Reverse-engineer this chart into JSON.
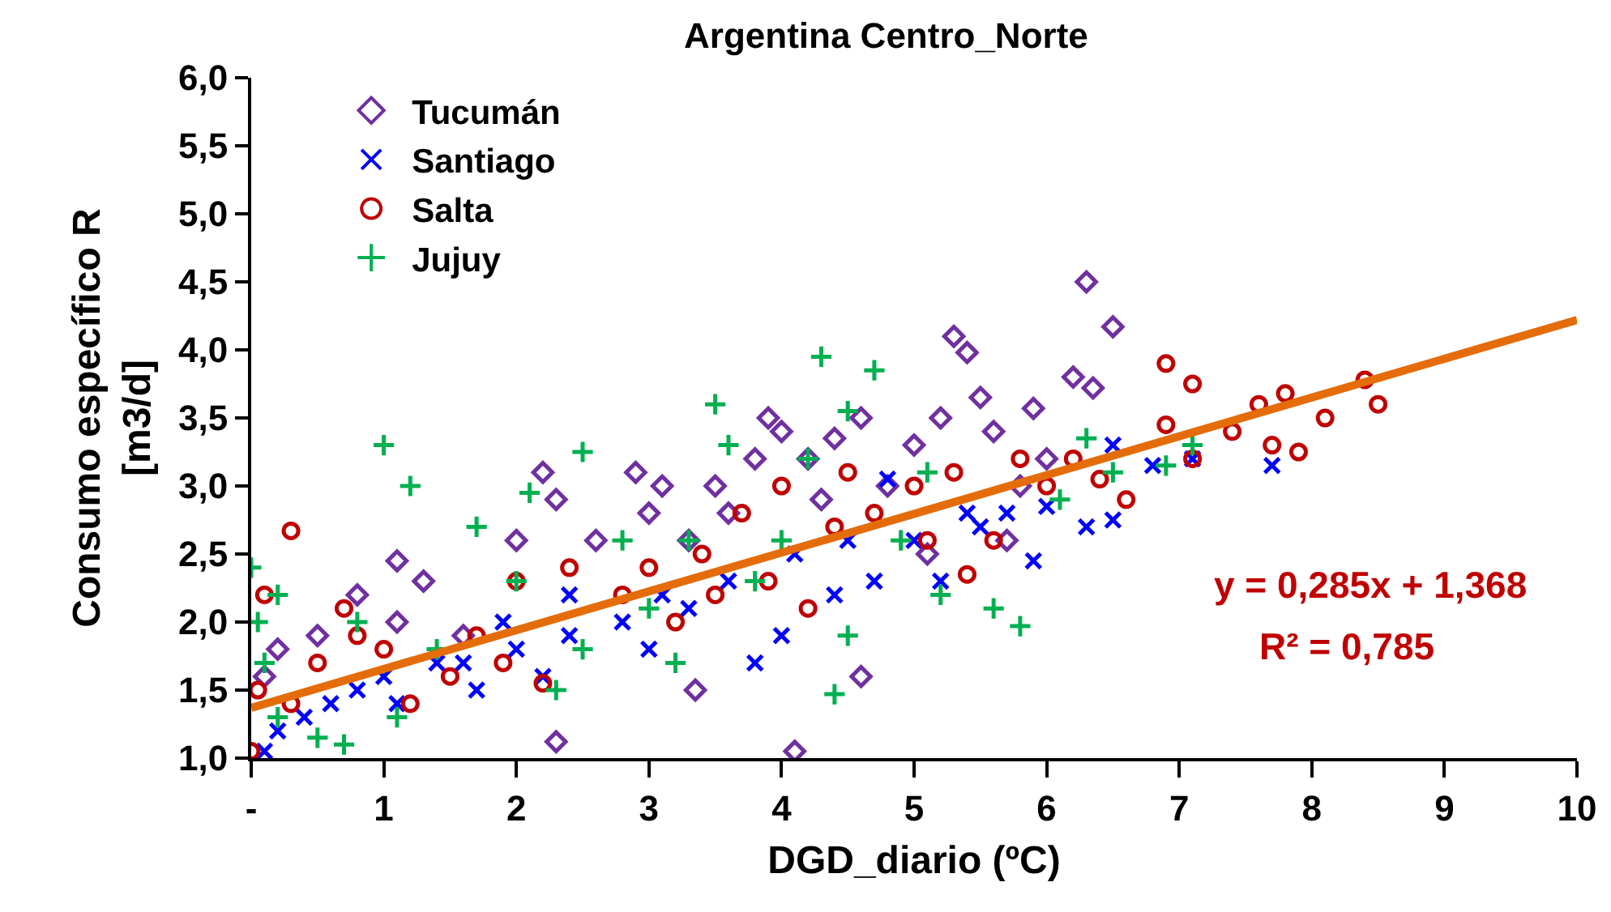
{
  "chart_data": {
    "type": "scatter",
    "title": "Argentina Centro_Norte",
    "xlabel": "DGD_diario (ºC)",
    "ylabel": "Consumo específico R\n[m3/d]",
    "xlim": [
      0,
      10
    ],
    "xticks": [
      {
        "value": 0,
        "label": "-"
      },
      1,
      2,
      3,
      4,
      5,
      6,
      7,
      8,
      9,
      10
    ],
    "ylim": [
      1,
      6
    ],
    "yticks": [
      {
        "value": 1,
        "label": "1,0"
      },
      {
        "value": 1.5,
        "label": "1,5"
      },
      {
        "value": 2,
        "label": "2,0"
      },
      {
        "value": 2.5,
        "label": "2,5"
      },
      {
        "value": 3,
        "label": "3,0"
      },
      {
        "value": 3.5,
        "label": "3,5"
      },
      {
        "value": 4,
        "label": "4,0"
      },
      {
        "value": 4.5,
        "label": "4,5"
      },
      {
        "value": 5,
        "label": "5,0"
      },
      {
        "value": 5.5,
        "label": "5,5"
      },
      {
        "value": 6,
        "label": "6,0"
      }
    ],
    "grid": false,
    "legend": "top left",
    "annotations": [
      "y = 0,285x + 1,368",
      "R² = 0,785"
    ],
    "series": [
      {
        "name": "Tucumán",
        "color": "#7030a0",
        "marker": "diamond",
        "x": [
          4.1,
          2.3,
          3.35,
          0.1,
          0.2,
          0.5,
          0.8,
          1.1,
          1.1,
          1.3,
          1.6,
          2.0,
          2.2,
          2.3,
          2.6,
          2.9,
          3.1,
          3.0,
          3.3,
          3.5,
          3.6,
          3.9,
          4.0,
          3.8,
          4.2,
          4.4,
          4.6,
          4.3,
          4.6,
          5.0,
          5.2,
          5.4,
          5.3,
          5.5,
          5.6,
          5.9,
          5.7,
          6.2,
          6.3,
          6.5,
          6.35,
          4.8,
          5.1,
          5.8,
          6.0
        ],
        "values": [
          1.05,
          1.12,
          1.5,
          1.6,
          1.8,
          1.9,
          2.2,
          2.0,
          2.45,
          2.3,
          1.9,
          2.6,
          3.1,
          2.9,
          2.6,
          3.1,
          3.0,
          2.8,
          2.6,
          3.0,
          2.8,
          3.5,
          3.4,
          3.2,
          3.2,
          3.35,
          3.5,
          2.9,
          1.6,
          3.3,
          3.5,
          3.98,
          4.1,
          3.65,
          3.4,
          3.57,
          2.6,
          3.8,
          4.5,
          4.17,
          3.72,
          3.0,
          2.5,
          3.0,
          3.2
        ]
      },
      {
        "name": "Santiago",
        "color": "#0000ff",
        "marker": "cross",
        "x": [
          0.1,
          0.2,
          0.4,
          0.6,
          0.8,
          1.0,
          1.1,
          1.4,
          1.6,
          1.9,
          2.0,
          2.2,
          2.4,
          2.8,
          3.0,
          3.1,
          3.3,
          3.6,
          3.8,
          4.0,
          4.1,
          4.4,
          4.5,
          4.7,
          4.8,
          5.0,
          5.2,
          5.4,
          5.5,
          5.7,
          5.9,
          6.0,
          6.3,
          6.5,
          6.5,
          6.8,
          7.1,
          7.7,
          2.4,
          1.7
        ],
        "values": [
          1.05,
          1.2,
          1.3,
          1.4,
          1.5,
          1.6,
          1.4,
          1.7,
          1.7,
          2.0,
          1.8,
          1.6,
          1.9,
          2.0,
          1.8,
          2.2,
          2.1,
          2.3,
          1.7,
          1.9,
          2.5,
          2.2,
          2.6,
          2.3,
          3.05,
          2.6,
          2.3,
          2.8,
          2.7,
          2.8,
          2.45,
          2.85,
          2.7,
          2.75,
          3.3,
          3.15,
          3.2,
          3.15,
          2.2,
          1.5
        ]
      },
      {
        "name": "Salta",
        "color": "#c00000",
        "marker": "circle",
        "x": [
          0.0,
          0.05,
          0.1,
          0.3,
          0.3,
          0.5,
          0.7,
          0.8,
          1.0,
          1.2,
          1.5,
          1.7,
          1.9,
          2.0,
          2.2,
          2.4,
          2.8,
          3.0,
          3.2,
          3.4,
          3.5,
          3.7,
          3.9,
          4.0,
          4.2,
          4.4,
          4.5,
          4.7,
          5.0,
          5.1,
          5.3,
          5.4,
          5.6,
          5.8,
          6.0,
          6.2,
          6.4,
          6.6,
          6.9,
          7.1,
          6.9,
          7.1,
          7.4,
          7.6,
          7.7,
          7.8,
          7.9,
          8.1,
          8.4,
          8.5
        ],
        "values": [
          1.05,
          1.5,
          2.2,
          2.67,
          1.4,
          1.7,
          2.1,
          1.9,
          1.8,
          1.4,
          1.6,
          1.9,
          1.7,
          2.3,
          1.55,
          2.4,
          2.2,
          2.4,
          2.0,
          2.5,
          2.2,
          2.8,
          2.3,
          3.0,
          2.1,
          2.7,
          3.1,
          2.8,
          3.0,
          2.6,
          3.1,
          2.35,
          2.6,
          3.2,
          3.0,
          3.2,
          3.05,
          2.9,
          3.9,
          3.75,
          3.45,
          3.2,
          3.4,
          3.6,
          3.3,
          3.68,
          3.25,
          3.5,
          3.78,
          3.6
        ]
      },
      {
        "name": "Jujuy",
        "color": "#00b050",
        "marker": "plus",
        "x": [
          0.0,
          0.05,
          0.1,
          0.2,
          0.2,
          0.5,
          0.7,
          0.8,
          1.0,
          1.2,
          1.1,
          1.4,
          1.7,
          2.0,
          2.1,
          2.3,
          2.5,
          2.5,
          2.8,
          3.0,
          3.2,
          3.3,
          3.5,
          3.6,
          3.8,
          4.0,
          4.2,
          4.3,
          4.4,
          4.5,
          4.5,
          4.7,
          4.9,
          5.1,
          5.2,
          5.6,
          5.8,
          6.1,
          6.3,
          6.5,
          6.9,
          7.1
        ],
        "values": [
          2.4,
          2.0,
          1.7,
          1.3,
          2.2,
          1.15,
          1.1,
          2.0,
          3.3,
          3.0,
          1.3,
          1.8,
          2.7,
          2.3,
          2.95,
          1.5,
          3.25,
          1.8,
          2.6,
          2.1,
          1.7,
          2.6,
          3.6,
          3.3,
          2.3,
          2.6,
          3.2,
          3.95,
          1.47,
          3.55,
          1.9,
          3.85,
          2.6,
          3.1,
          2.2,
          2.1,
          1.97,
          2.9,
          3.35,
          3.1,
          3.15,
          3.3
        ]
      },
      {
        "type": "line",
        "color": "#e46c0a",
        "marker": "none",
        "line_style": "solid",
        "x": [
          0,
          10
        ],
        "values": [
          1.37,
          4.22
        ]
      }
    ]
  }
}
